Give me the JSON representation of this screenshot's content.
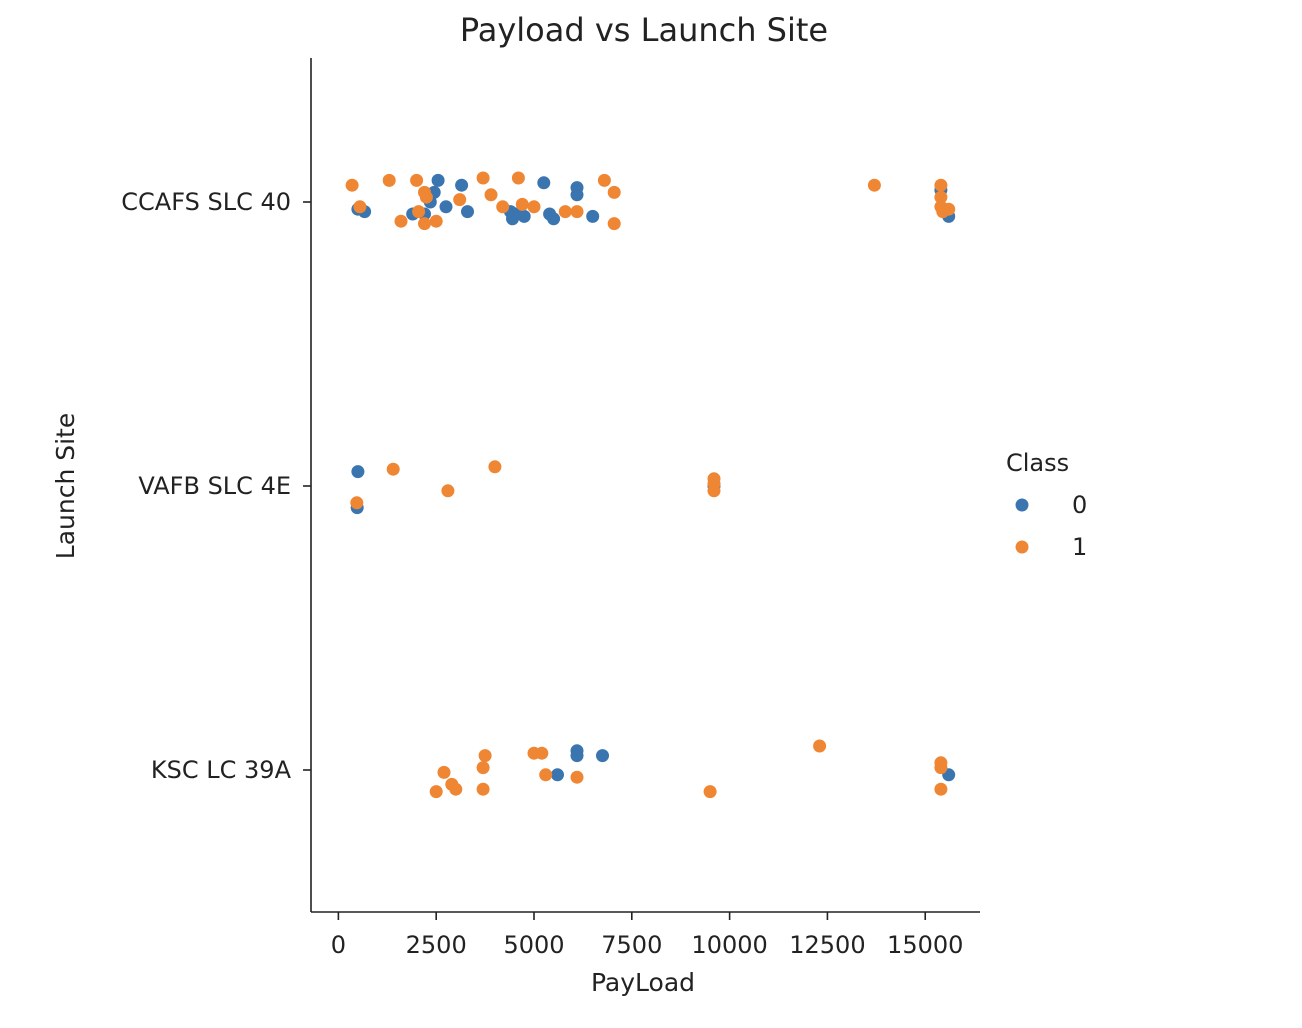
{
  "chart_data": {
    "type": "scatter",
    "title": "Payload vs Launch Site",
    "xlabel": "PayLoad",
    "ylabel": "Launch Site",
    "xlim": [
      -700,
      16400
    ],
    "xticks": [
      0,
      2500,
      5000,
      7500,
      10000,
      12500,
      15000
    ],
    "xtick_labels": [
      "0",
      "2500",
      "5000",
      "7500",
      "10000",
      "12500",
      "15000"
    ],
    "categories": [
      "CCAFS SLC 40",
      "VAFB SLC 4E",
      "KSC LC 39A"
    ],
    "grid": false,
    "legend": {
      "title": "Class",
      "placement": "center-right",
      "entries": [
        {
          "label": "0",
          "color": "#3a75b0"
        },
        {
          "label": "1",
          "color": "#ef8633"
        }
      ]
    },
    "series": [
      {
        "class": "0",
        "color": "#3a75b0",
        "points": [
          {
            "x": 500,
            "site": "CCAFS SLC 40",
            "jitter": 0.03
          },
          {
            "x": 670,
            "site": "CCAFS SLC 40",
            "jitter": 0.04
          },
          {
            "x": 1900,
            "site": "CCAFS SLC 40",
            "jitter": 0.05
          },
          {
            "x": 2200,
            "site": "CCAFS SLC 40",
            "jitter": 0.05
          },
          {
            "x": 2350,
            "site": "CCAFS SLC 40",
            "jitter": 0.0
          },
          {
            "x": 2450,
            "site": "CCAFS SLC 40",
            "jitter": -0.04
          },
          {
            "x": 2550,
            "site": "CCAFS SLC 40",
            "jitter": -0.09
          },
          {
            "x": 2750,
            "site": "CCAFS SLC 40",
            "jitter": 0.02
          },
          {
            "x": 3150,
            "site": "CCAFS SLC 40",
            "jitter": -0.07
          },
          {
            "x": 3300,
            "site": "CCAFS SLC 40",
            "jitter": 0.04
          },
          {
            "x": 4400,
            "site": "CCAFS SLC 40",
            "jitter": 0.04
          },
          {
            "x": 4450,
            "site": "CCAFS SLC 40",
            "jitter": 0.07
          },
          {
            "x": 4550,
            "site": "CCAFS SLC 40",
            "jitter": 0.05
          },
          {
            "x": 4750,
            "site": "CCAFS SLC 40",
            "jitter": 0.06
          },
          {
            "x": 5250,
            "site": "CCAFS SLC 40",
            "jitter": -0.08
          },
          {
            "x": 5400,
            "site": "CCAFS SLC 40",
            "jitter": 0.05
          },
          {
            "x": 5500,
            "site": "CCAFS SLC 40",
            "jitter": 0.07
          },
          {
            "x": 6100,
            "site": "CCAFS SLC 40",
            "jitter": -0.06
          },
          {
            "x": 6100,
            "site": "CCAFS SLC 40",
            "jitter": -0.03
          },
          {
            "x": 6500,
            "site": "CCAFS SLC 40",
            "jitter": 0.06
          },
          {
            "x": 15400,
            "site": "CCAFS SLC 40",
            "jitter": -0.05
          },
          {
            "x": 15600,
            "site": "CCAFS SLC 40",
            "jitter": 0.06
          },
          {
            "x": 500,
            "site": "VAFB SLC 4E",
            "jitter": -0.06
          },
          {
            "x": 480,
            "site": "VAFB SLC 4E",
            "jitter": 0.09
          },
          {
            "x": 9600,
            "site": "VAFB SLC 4E",
            "jitter": 0.0
          },
          {
            "x": 6100,
            "site": "KSC LC 39A",
            "jitter": -0.08
          },
          {
            "x": 6100,
            "site": "KSC LC 39A",
            "jitter": -0.06
          },
          {
            "x": 6750,
            "site": "KSC LC 39A",
            "jitter": -0.06
          },
          {
            "x": 5600,
            "site": "KSC LC 39A",
            "jitter": 0.02
          },
          {
            "x": 15600,
            "site": "KSC LC 39A",
            "jitter": 0.02
          }
        ]
      },
      {
        "class": "1",
        "color": "#ef8633",
        "points": [
          {
            "x": 350,
            "site": "CCAFS SLC 40",
            "jitter": -0.07
          },
          {
            "x": 550,
            "site": "CCAFS SLC 40",
            "jitter": 0.02
          },
          {
            "x": 1300,
            "site": "CCAFS SLC 40",
            "jitter": -0.09
          },
          {
            "x": 1600,
            "site": "CCAFS SLC 40",
            "jitter": 0.08
          },
          {
            "x": 2000,
            "site": "CCAFS SLC 40",
            "jitter": -0.09
          },
          {
            "x": 2050,
            "site": "CCAFS SLC 40",
            "jitter": 0.04
          },
          {
            "x": 2200,
            "site": "CCAFS SLC 40",
            "jitter": -0.04
          },
          {
            "x": 2250,
            "site": "CCAFS SLC 40",
            "jitter": -0.02
          },
          {
            "x": 2200,
            "site": "CCAFS SLC 40",
            "jitter": 0.09
          },
          {
            "x": 2500,
            "site": "CCAFS SLC 40",
            "jitter": 0.08
          },
          {
            "x": 3100,
            "site": "CCAFS SLC 40",
            "jitter": -0.01
          },
          {
            "x": 3700,
            "site": "CCAFS SLC 40",
            "jitter": -0.1
          },
          {
            "x": 3900,
            "site": "CCAFS SLC 40",
            "jitter": -0.03
          },
          {
            "x": 4200,
            "site": "CCAFS SLC 40",
            "jitter": 0.02
          },
          {
            "x": 4600,
            "site": "CCAFS SLC 40",
            "jitter": -0.1
          },
          {
            "x": 4700,
            "site": "CCAFS SLC 40",
            "jitter": 0.01
          },
          {
            "x": 5000,
            "site": "CCAFS SLC 40",
            "jitter": 0.02
          },
          {
            "x": 5800,
            "site": "CCAFS SLC 40",
            "jitter": 0.04
          },
          {
            "x": 6100,
            "site": "CCAFS SLC 40",
            "jitter": 0.04
          },
          {
            "x": 6800,
            "site": "CCAFS SLC 40",
            "jitter": -0.09
          },
          {
            "x": 7050,
            "site": "CCAFS SLC 40",
            "jitter": -0.04
          },
          {
            "x": 7050,
            "site": "CCAFS SLC 40",
            "jitter": 0.09
          },
          {
            "x": 13700,
            "site": "CCAFS SLC 40",
            "jitter": -0.07
          },
          {
            "x": 15400,
            "site": "CCAFS SLC 40",
            "jitter": -0.07
          },
          {
            "x": 15400,
            "site": "CCAFS SLC 40",
            "jitter": -0.02
          },
          {
            "x": 15400,
            "site": "CCAFS SLC 40",
            "jitter": 0.02
          },
          {
            "x": 15450,
            "site": "CCAFS SLC 40",
            "jitter": 0.04
          },
          {
            "x": 15600,
            "site": "CCAFS SLC 40",
            "jitter": 0.03
          },
          {
            "x": 1400,
            "site": "VAFB SLC 4E",
            "jitter": -0.07
          },
          {
            "x": 2800,
            "site": "VAFB SLC 4E",
            "jitter": 0.02
          },
          {
            "x": 4000,
            "site": "VAFB SLC 4E",
            "jitter": -0.08
          },
          {
            "x": 470,
            "site": "VAFB SLC 4E",
            "jitter": 0.07
          },
          {
            "x": 9600,
            "site": "VAFB SLC 4E",
            "jitter": -0.03
          },
          {
            "x": 9600,
            "site": "VAFB SLC 4E",
            "jitter": -0.01
          },
          {
            "x": 9600,
            "site": "VAFB SLC 4E",
            "jitter": 0.02
          },
          {
            "x": 2500,
            "site": "KSC LC 39A",
            "jitter": 0.09
          },
          {
            "x": 2700,
            "site": "KSC LC 39A",
            "jitter": 0.01
          },
          {
            "x": 2900,
            "site": "KSC LC 39A",
            "jitter": 0.06
          },
          {
            "x": 3000,
            "site": "KSC LC 39A",
            "jitter": 0.08
          },
          {
            "x": 3700,
            "site": "KSC LC 39A",
            "jitter": -0.01
          },
          {
            "x": 3750,
            "site": "KSC LC 39A",
            "jitter": -0.06
          },
          {
            "x": 3700,
            "site": "KSC LC 39A",
            "jitter": 0.08
          },
          {
            "x": 5000,
            "site": "KSC LC 39A",
            "jitter": -0.07
          },
          {
            "x": 5200,
            "site": "KSC LC 39A",
            "jitter": -0.07
          },
          {
            "x": 5300,
            "site": "KSC LC 39A",
            "jitter": 0.02
          },
          {
            "x": 6100,
            "site": "KSC LC 39A",
            "jitter": 0.03
          },
          {
            "x": 9500,
            "site": "KSC LC 39A",
            "jitter": 0.09
          },
          {
            "x": 12300,
            "site": "KSC LC 39A",
            "jitter": -0.1
          },
          {
            "x": 15400,
            "site": "KSC LC 39A",
            "jitter": -0.03
          },
          {
            "x": 15400,
            "site": "KSC LC 39A",
            "jitter": -0.01
          },
          {
            "x": 15400,
            "site": "KSC LC 39A",
            "jitter": 0.08
          }
        ]
      }
    ]
  }
}
